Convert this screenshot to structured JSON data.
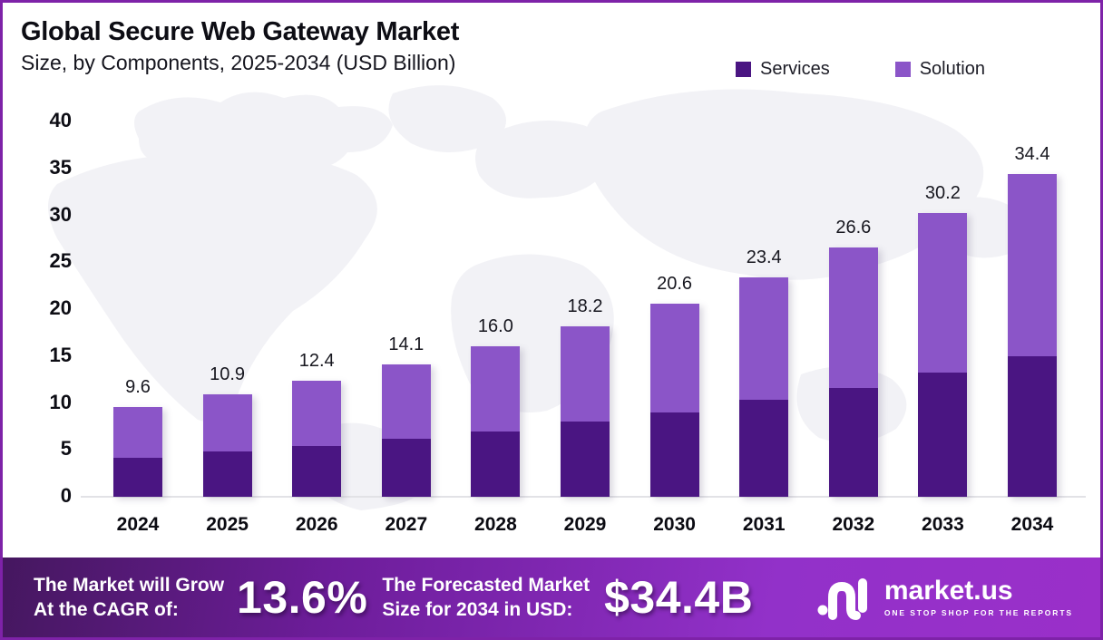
{
  "page": {
    "title": "Global Secure Web Gateway Market",
    "subtitle": "Size, by Components, 2025-2034 (USD Billion)"
  },
  "legend": [
    {
      "label": "Services",
      "color": "#4a1582"
    },
    {
      "label": "Solution",
      "color": "#8b55c8"
    }
  ],
  "chart_data": {
    "type": "bar",
    "stacked": true,
    "title": "Global Secure Web Gateway Market Size, by Components, 2025-2034 (USD Billion)",
    "categories": [
      "2024",
      "2025",
      "2026",
      "2027",
      "2028",
      "2029",
      "2030",
      "2031",
      "2032",
      "2033",
      "2034"
    ],
    "series": [
      {
        "name": "Services",
        "color": "#4a1582",
        "values": [
          4.2,
          4.8,
          5.4,
          6.2,
          7.0,
          8.0,
          9.0,
          10.3,
          11.6,
          13.2,
          15.0
        ]
      },
      {
        "name": "Solution",
        "color": "#8b55c8",
        "values": [
          5.4,
          6.1,
          7.0,
          7.9,
          9.0,
          10.2,
          11.6,
          13.1,
          15.0,
          17.0,
          19.4
        ]
      }
    ],
    "totals": [
      9.6,
      10.9,
      12.4,
      14.1,
      16.0,
      18.2,
      20.6,
      23.4,
      26.6,
      30.2,
      34.4
    ],
    "total_labels": [
      "9.6",
      "10.9",
      "12.4",
      "14.1",
      "16.0",
      "18.2",
      "20.6",
      "23.4",
      "26.6",
      "30.2",
      "34.4"
    ],
    "xlabel": "",
    "ylabel": "",
    "ylim": [
      0,
      40
    ],
    "yticks": [
      0,
      5,
      10,
      15,
      20,
      25,
      30,
      35,
      40
    ],
    "grid": false,
    "legend_position": "top-right"
  },
  "banner": {
    "cagr_label_line1": "The Market will Grow",
    "cagr_label_line2": "At the CAGR of:",
    "cagr_value": "13.6%",
    "forecast_label_line1": "The Forecasted Market",
    "forecast_label_line2": "Size for 2034 in USD:",
    "forecast_value": "$34.4B",
    "brand_name": "market.us",
    "brand_tagline": "ONE STOP SHOP FOR THE REPORTS"
  },
  "colors": {
    "services": "#4a1582",
    "solution": "#8b55c8",
    "border": "#7e22a8",
    "banner_gradient_start": "#45175f",
    "banner_gradient_end": "#9a2fc9",
    "axis_line": "#e2e2e6",
    "map_watermark": "#f2f2f6"
  }
}
